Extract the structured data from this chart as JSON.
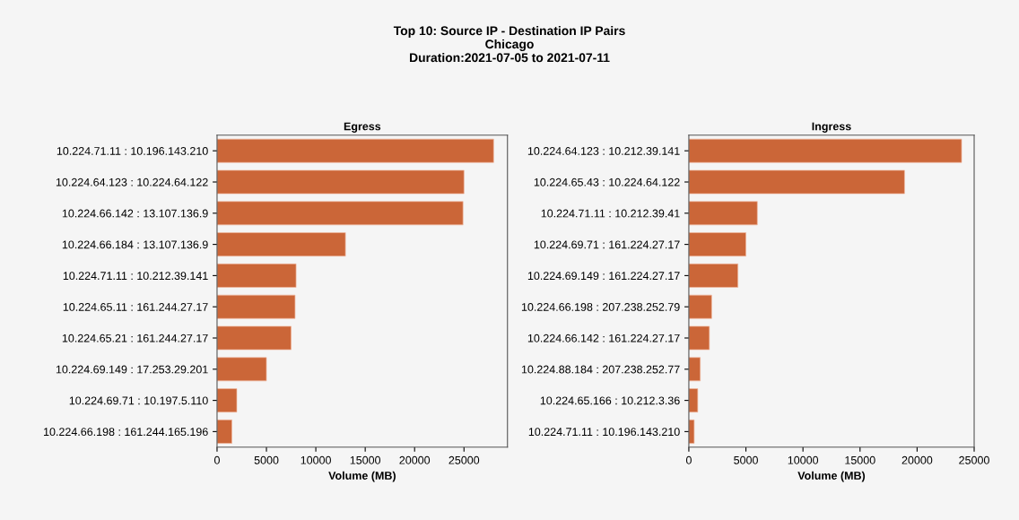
{
  "chart_data": [
    {
      "type": "bar",
      "orientation": "horizontal",
      "title": "Egress",
      "xlabel": "Volume (MB)",
      "categories": [
        "10.224.71.11 : 10.196.143.210",
        "10.224.64.123 : 10.224.64.122",
        "10.224.66.142 : 13.107.136.9",
        "10.224.66.184 : 13.107.136.9",
        "10.224.71.11 : 10.212.39.141",
        "10.224.65.11 : 161.244.27.17",
        "10.224.65.21 : 161.244.27.17",
        "10.224.69.149 : 17.253.29.201",
        "10.224.69.71 : 10.197.5.110",
        "10.224.66.198 : 161.244.165.196"
      ],
      "values": [
        28000,
        25000,
        24900,
        13000,
        8000,
        7900,
        7500,
        5000,
        2000,
        1500
      ],
      "color": "#cb6638",
      "xlim": [
        0,
        29400
      ],
      "xticks": [
        0,
        5000,
        10000,
        15000,
        20000,
        25000
      ],
      "grid": false,
      "legend": false,
      "annotations": [
        "Top 10: Source IP - Destination IP Pairs\nChicago\nDuration:2021-07-05 to 2021-07-11"
      ]
    },
    {
      "type": "bar",
      "orientation": "horizontal",
      "title": "Ingress",
      "xlabel": "Volume (MB)",
      "categories": [
        "10.224.64.123 : 10.212.39.141",
        "10.224.65.43 : 10.224.64.122",
        "10.224.71.11 : 10.212.39.41",
        "10.224.69.71 : 161.224.27.17",
        "10.224.69.149 : 161.224.27.17",
        "10.224.66.198 : 207.238.252.79",
        "10.224.66.142 : 161.224.27.17",
        "10.224.88.184 : 207.238.252.77",
        "10.224.65.166 : 10.212.3.36",
        "10.224.71.11 : 10.196.143.210"
      ],
      "values": [
        23900,
        18900,
        6000,
        5000,
        4300,
        2000,
        1800,
        1000,
        780,
        470
      ],
      "color": "#cb6638",
      "xlim": [
        0,
        25000
      ],
      "xticks": [
        0,
        5000,
        10000,
        15000,
        20000,
        25000
      ],
      "grid": false,
      "legend": false
    }
  ]
}
